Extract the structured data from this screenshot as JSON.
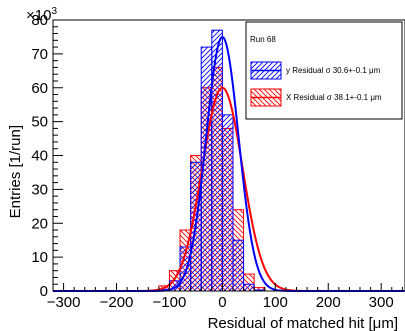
{
  "chart_data": {
    "type": "bar",
    "xlabel": "Residual of matched hit [μm]",
    "ylabel": "Entries [1/run]",
    "y_multiplier": "×10",
    "y_multiplier_exp": "3",
    "xlim": [
      -320,
      345
    ],
    "ylim": [
      0,
      80000
    ],
    "x_ticks": [
      -300,
      -200,
      -100,
      0,
      100,
      200,
      300
    ],
    "y_ticks": [
      0,
      10000,
      20000,
      30000,
      40000,
      50000,
      60000,
      70000,
      80000
    ],
    "y_tick_labels": [
      "0",
      "10",
      "20",
      "30",
      "40",
      "50",
      "60",
      "70",
      "80"
    ],
    "bin_width": 20,
    "bin_edges_start": -160,
    "legend": {
      "title": "Run 68",
      "entries": [
        "y Residual σ 30.6+-0.1 μm",
        "X Residual σ 38.1+-0.1 μm"
      ]
    },
    "series": [
      {
        "name": "y Residual σ 30.6+-0.1 μm",
        "color": "#0000ff",
        "bin_values": [
          0,
          100,
          500,
          3000,
          13000,
          38000,
          72000,
          77000,
          52000,
          15000,
          2000,
          300,
          0,
          0,
          0,
          0
        ],
        "fit": {
          "mean": 0,
          "sigma": 30.6,
          "amplitude": 75000
        }
      },
      {
        "name": "X Residual σ 38.1+-0.1 μm",
        "color": "#ff0000",
        "bin_values": [
          0,
          200,
          1500,
          6000,
          18000,
          40000,
          60000,
          66000,
          48000,
          24000,
          5000,
          1000,
          0,
          0,
          0,
          0
        ],
        "fit": {
          "mean": 0,
          "sigma": 38.1,
          "amplitude": 60000
        }
      }
    ]
  }
}
